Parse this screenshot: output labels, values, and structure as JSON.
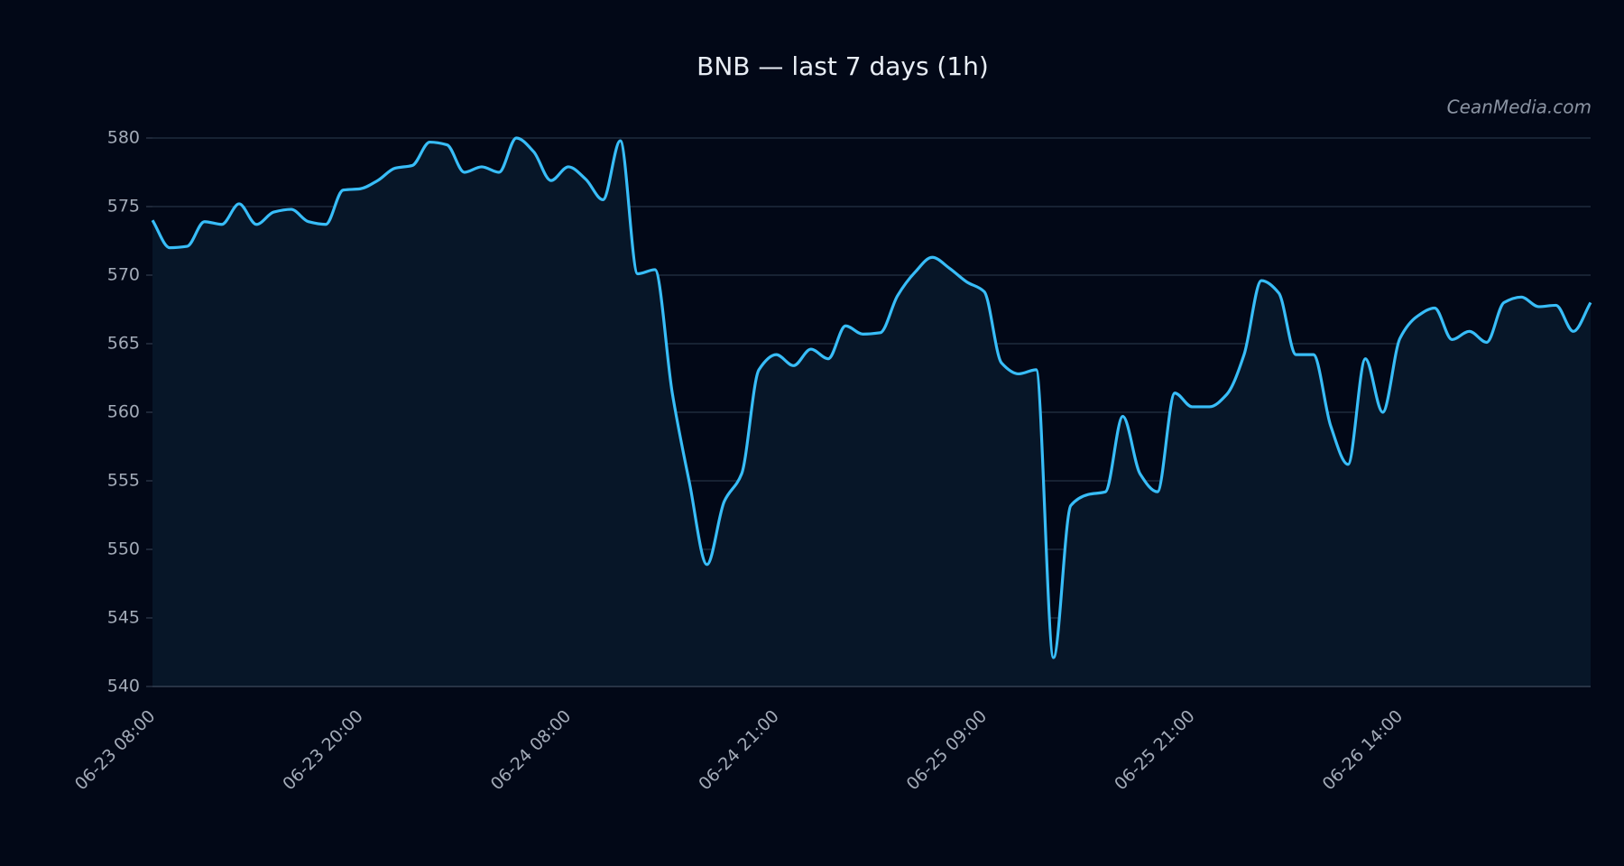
{
  "chart_data": {
    "type": "line",
    "title": "BNB — last 7 days (1h)",
    "watermark": "CeanMedia.com",
    "categories": [
      "06-23 08:00",
      null,
      null,
      null,
      null,
      null,
      null,
      null,
      null,
      null,
      null,
      null,
      "06-23 20:00",
      null,
      null,
      null,
      null,
      null,
      null,
      null,
      null,
      null,
      null,
      null,
      "06-24 08:00",
      null,
      null,
      null,
      null,
      null,
      null,
      null,
      null,
      null,
      null,
      null,
      "06-24 21:00",
      null,
      null,
      null,
      null,
      null,
      null,
      null,
      null,
      null,
      null,
      null,
      "06-25 09:00",
      null,
      null,
      null,
      null,
      null,
      null,
      null,
      null,
      null,
      null,
      null,
      "06-25 21:00",
      null,
      null,
      null,
      null,
      null,
      null,
      null,
      null,
      null,
      null,
      null,
      "06-26 14:00",
      null,
      null,
      null,
      null,
      null,
      null,
      null,
      null,
      null,
      null,
      null
    ],
    "values": [
      574.0,
      572.0,
      572.1,
      573.9,
      573.7,
      575.2,
      573.7,
      574.6,
      574.8,
      573.9,
      573.7,
      576.2,
      576.3,
      576.9,
      577.8,
      578.0,
      579.7,
      579.5,
      577.5,
      577.9,
      577.5,
      580.0,
      579.0,
      576.9,
      577.9,
      577.0,
      575.5,
      579.8,
      570.1,
      570.4,
      561.4,
      554.8,
      548.9,
      553.5,
      555.5,
      563.1,
      564.2,
      563.4,
      564.6,
      563.9,
      566.3,
      565.7,
      565.8,
      568.5,
      570.2,
      571.3,
      570.5,
      569.5,
      568.8,
      563.6,
      562.8,
      563.1,
      542.1,
      553.2,
      554.0,
      554.2,
      559.7,
      555.5,
      554.2,
      561.4,
      560.4,
      560.4,
      561.3,
      564.2,
      569.6,
      568.7,
      564.2,
      564.2,
      559.0,
      556.2,
      563.9,
      560.0,
      565.4,
      567.0,
      567.6,
      565.3,
      565.9,
      565.1,
      568.0,
      568.4,
      567.7,
      567.8,
      565.9,
      568.0
    ],
    "color": "#38bdf8",
    "area_color": "#071628",
    "ylim": [
      540,
      580
    ],
    "yticks": [
      540,
      545,
      550,
      555,
      560,
      565,
      570,
      575,
      580
    ],
    "grid": true
  }
}
